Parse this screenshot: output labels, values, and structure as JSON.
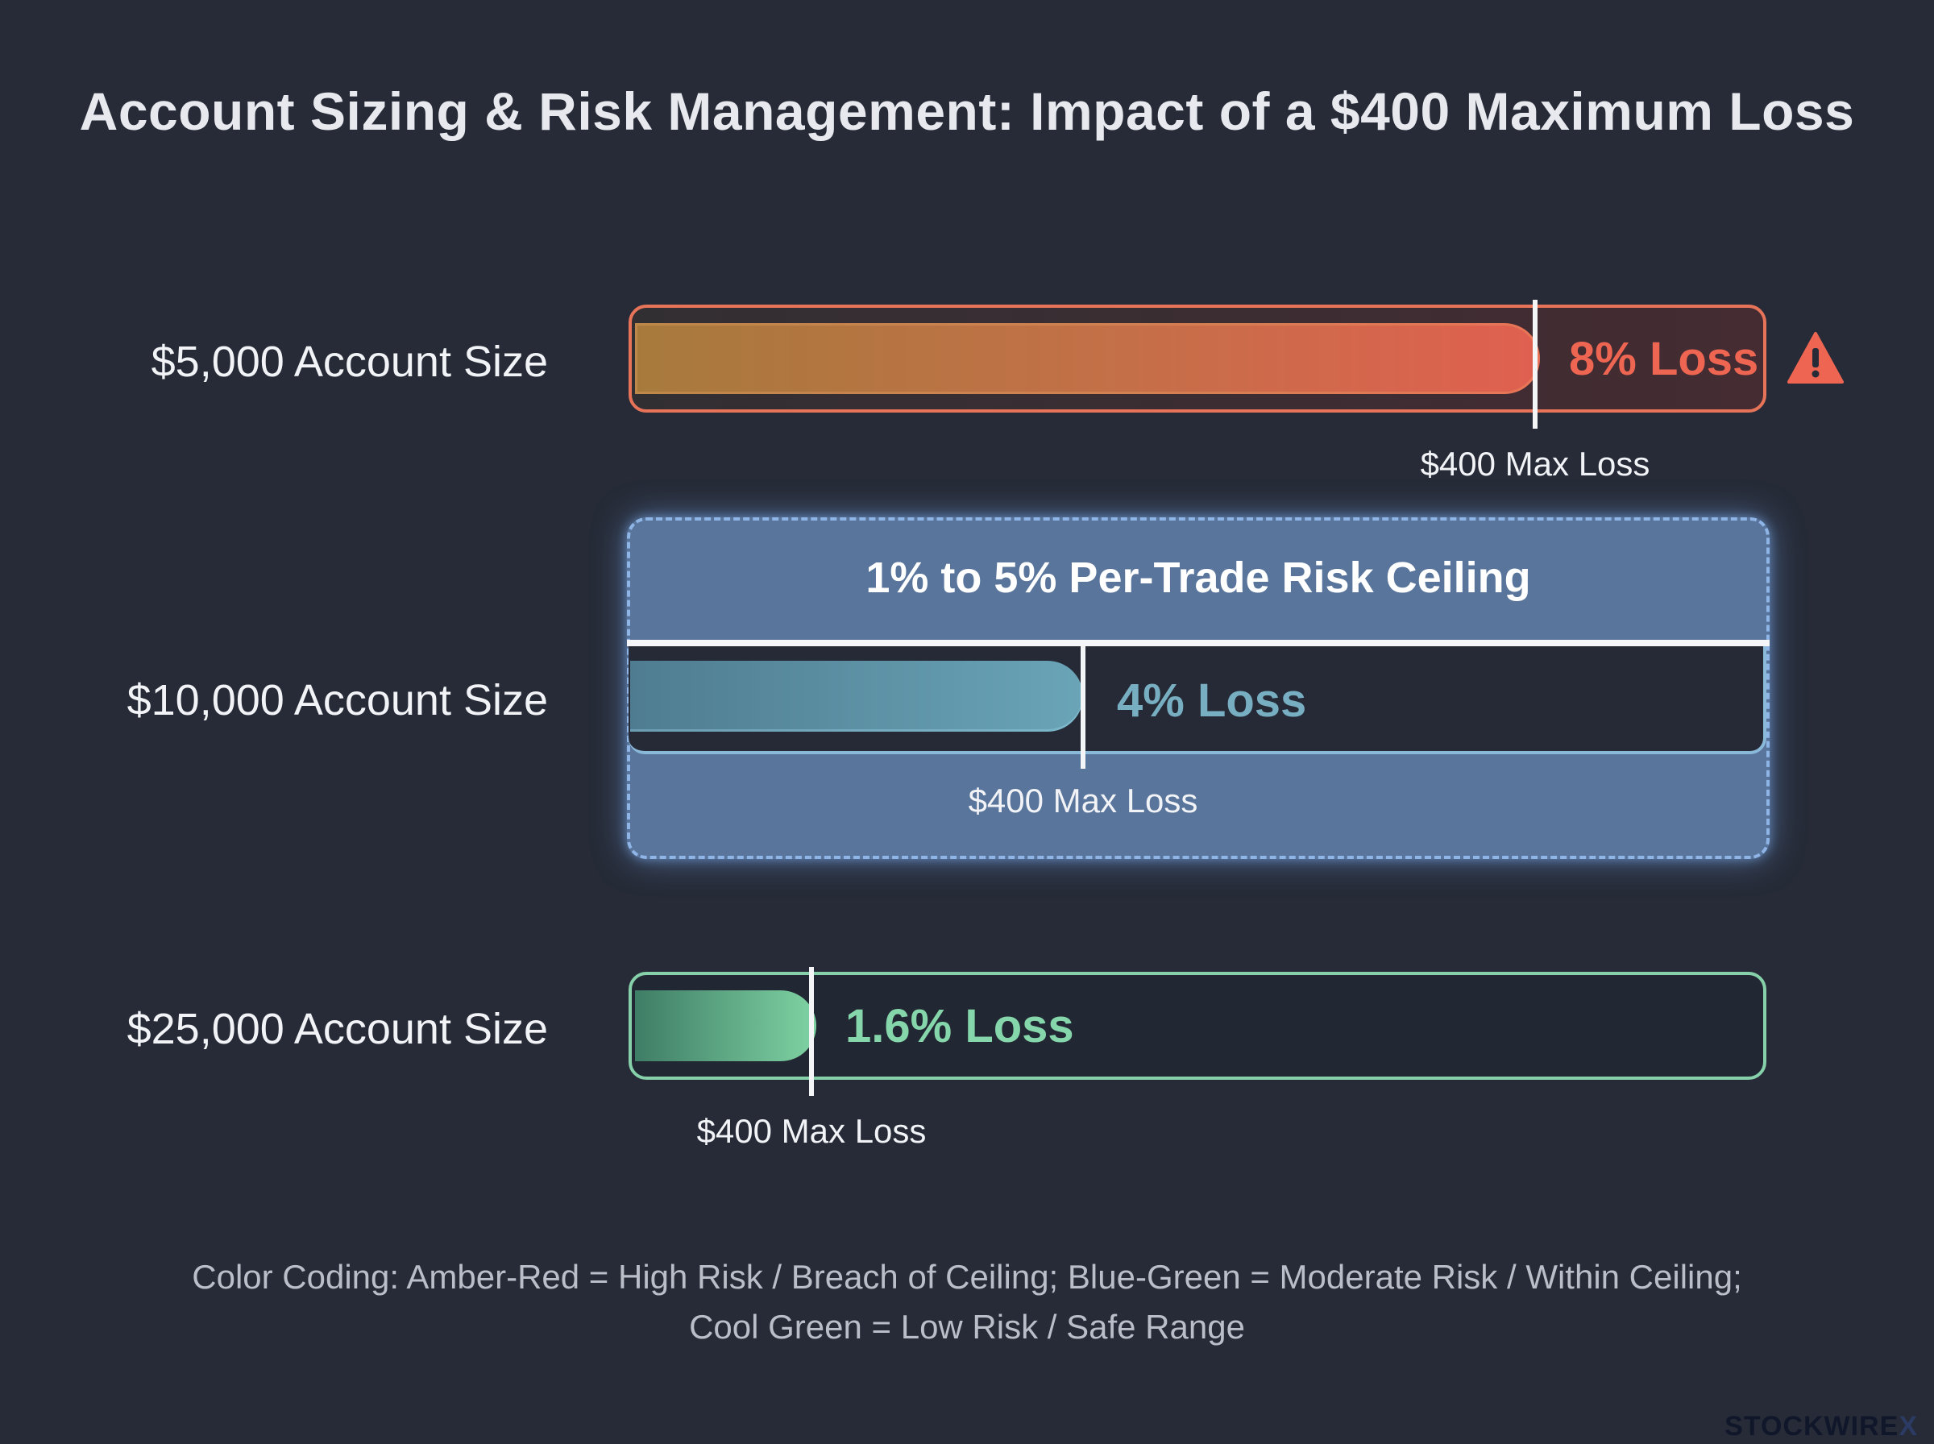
{
  "title": "Account Sizing & Risk Management: Impact of a $400 Maximum Loss",
  "chart_data": {
    "type": "bar",
    "orientation": "horizontal",
    "title": "Account Sizing & Risk Management: Impact of a $400 Maximum Loss",
    "categories": [
      "$5,000 Account Size",
      "$10,000 Account Size",
      "$25,000 Account Size"
    ],
    "values": [
      8,
      4,
      1.6
    ],
    "unit": "%",
    "loss_labels": [
      "8% Loss",
      "4% Loss",
      "1.6% Loss"
    ],
    "marker_label": "$400 Max Loss",
    "colors": [
      "#e06050",
      "#6aa4b7",
      "#7fd3a3"
    ],
    "xlim": [
      0,
      10
    ],
    "ceiling": {
      "label": "1% to 5% Per-Trade Risk Ceiling",
      "range": [
        1,
        5
      ]
    },
    "warning_icon": "warning-triangle-icon",
    "grid": false
  },
  "legend": {
    "line1": "Color Coding: Amber-Red = High Risk / Breach of Ceiling; Blue-Green = Moderate Risk / Within Ceiling;",
    "line2": "Cool Green = Low Risk / Safe Range"
  },
  "brand": {
    "name": "STOCKWIRE",
    "suffix": "X"
  }
}
